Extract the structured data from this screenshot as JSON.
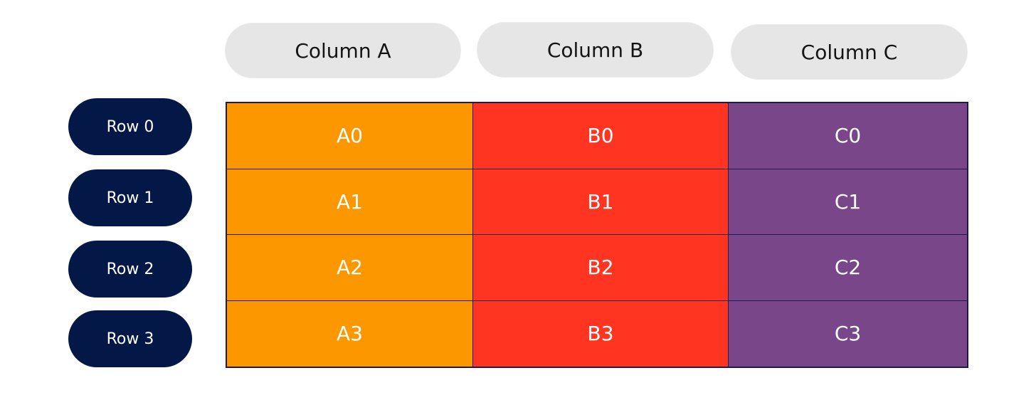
{
  "columns": [
    "Column A",
    "Column B",
    "Column C"
  ],
  "rows": [
    "Row 0",
    "Row 1",
    "Row 2",
    "Row 3"
  ],
  "cells": [
    [
      "A0",
      "B0",
      "C0"
    ],
    [
      "A1",
      "B1",
      "C1"
    ],
    [
      "A2",
      "B2",
      "C2"
    ],
    [
      "A3",
      "B3",
      "C3"
    ]
  ],
  "colors": {
    "column_a": "#fd9700",
    "column_b": "#ff3521",
    "column_c": "#784689",
    "row_label_bg": "#031847",
    "column_label_bg": "#e6e6e6"
  }
}
